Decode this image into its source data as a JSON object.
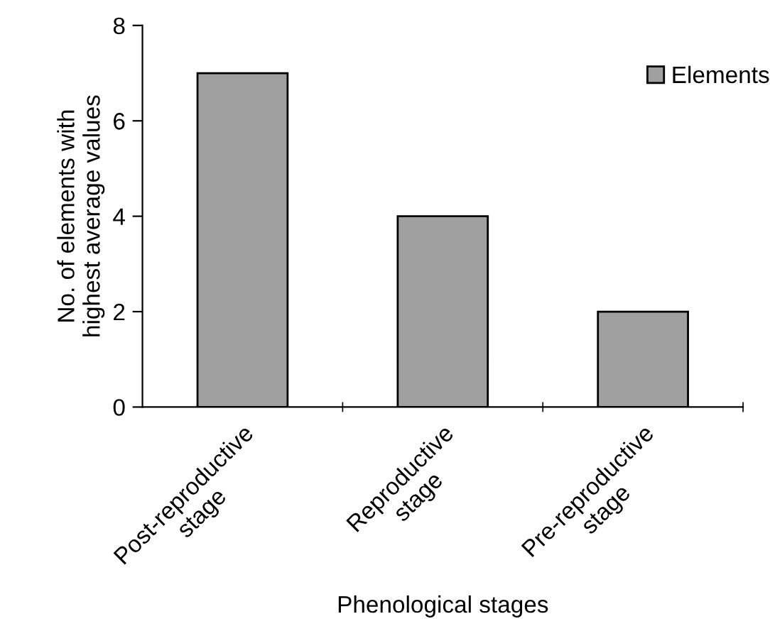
{
  "chart_data": {
    "type": "bar",
    "xlabel": "Phenological stages",
    "ylabel": "No. of elements with\nhighest average values",
    "categories": [
      "Post-reproductive\nstage",
      "Reproductive\nstage",
      "Pre-reproductive\nstage"
    ],
    "series": [
      {
        "name": "Elements",
        "color": "#a0a0a0",
        "values": [
          7,
          4,
          2
        ]
      }
    ],
    "ylim": [
      0,
      8
    ],
    "yticks": [
      0,
      2,
      4,
      6,
      8
    ],
    "grid": false,
    "legend": "top right"
  }
}
